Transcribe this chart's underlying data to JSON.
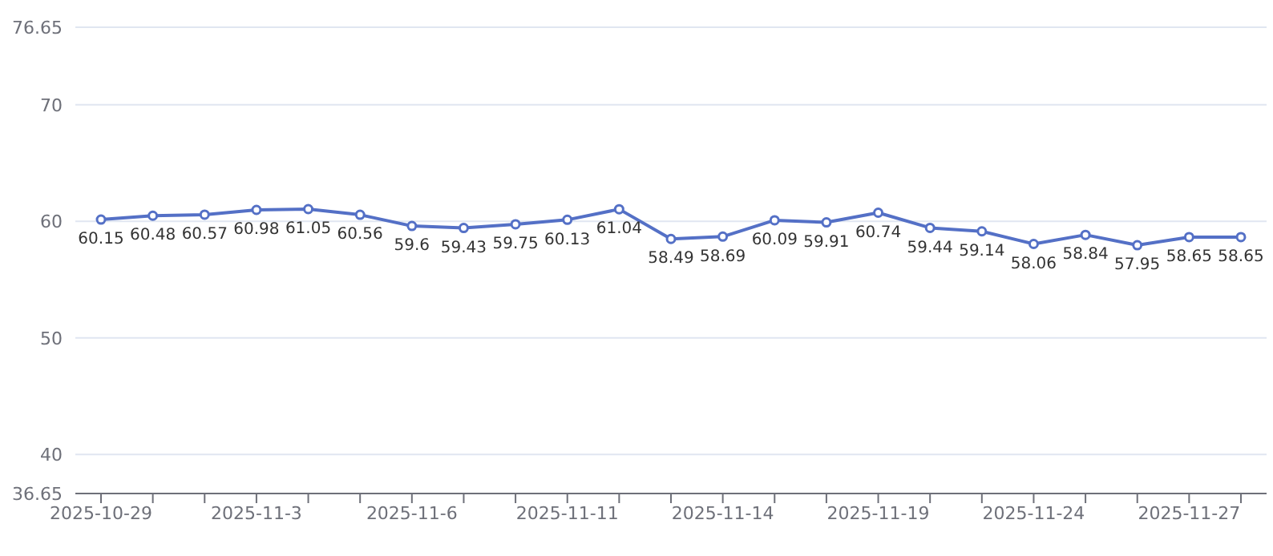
{
  "chart_data": {
    "type": "line",
    "categories": [
      "2025-10-29",
      null,
      null,
      "2025-11-3",
      null,
      null,
      "2025-11-6",
      null,
      null,
      "2025-11-11",
      null,
      null,
      "2025-11-14",
      null,
      null,
      "2025-11-19",
      null,
      null,
      "2025-11-24",
      null,
      null,
      "2025-11-27",
      null
    ],
    "series": [
      {
        "color": "#5470c6",
        "values": [
          60.15,
          60.48,
          60.57,
          60.98,
          61.05,
          60.56,
          59.6,
          59.43,
          59.75,
          60.13,
          61.04,
          58.49,
          58.69,
          60.09,
          59.91,
          60.74,
          59.44,
          59.14,
          58.06,
          58.84,
          57.95,
          58.65,
          58.65
        ]
      }
    ],
    "ylim": [
      36.65,
      76.65
    ],
    "yticks": [
      36.65,
      40,
      50,
      60,
      70,
      76.65
    ],
    "grid": "y",
    "data_labels": true,
    "marker": "circle",
    "line_style": "solid"
  }
}
